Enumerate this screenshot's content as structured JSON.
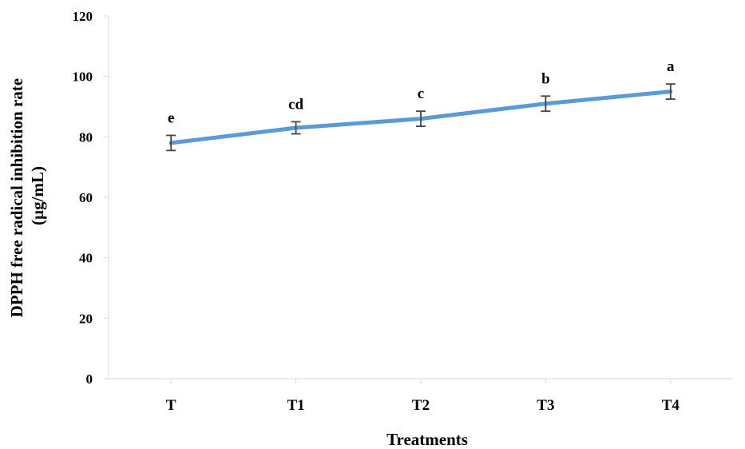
{
  "chart_data": {
    "type": "line",
    "categories": [
      "T",
      "T1",
      "T2",
      "T3",
      "T4"
    ],
    "series": [
      {
        "values": [
          78,
          83,
          86,
          91,
          95
        ],
        "errors": [
          2.5,
          2,
          2.5,
          2.5,
          2.5
        ],
        "significance_labels": [
          "e",
          "cd",
          "c",
          "b",
          "a"
        ],
        "color": "#5B9BD5"
      }
    ],
    "title": "",
    "xlabel": "Treatments",
    "ylabel": [
      "DPPH free radical inhibition  rate",
      "(µg/mL)"
    ],
    "ylim": [
      0,
      120
    ],
    "yticks": [
      0,
      20,
      40,
      60,
      80,
      100,
      120
    ],
    "grid": false,
    "legend": "none"
  }
}
